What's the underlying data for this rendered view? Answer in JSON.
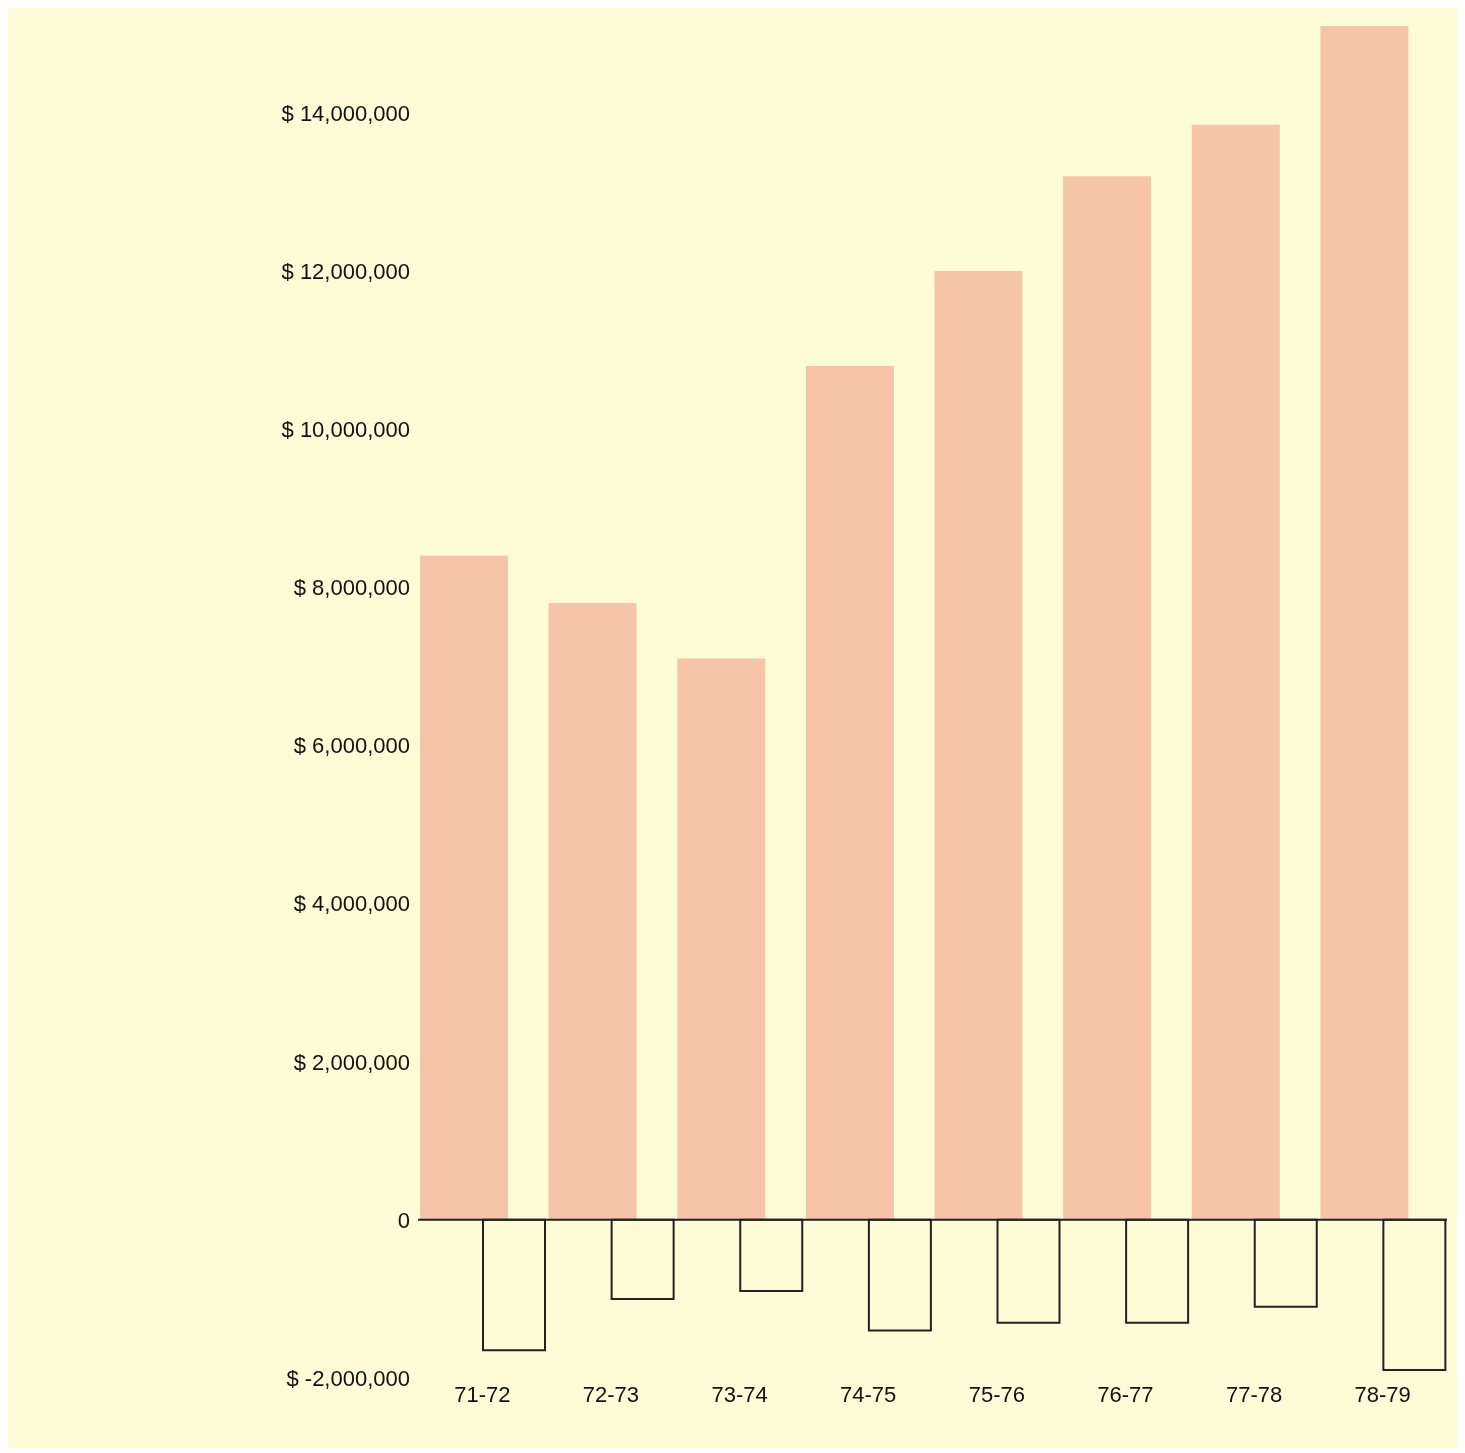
{
  "chart_data": {
    "type": "bar",
    "categories": [
      "71-72",
      "72-73",
      "73-74",
      "74-75",
      "75-76",
      "76-77",
      "77-78",
      "78-79"
    ],
    "series": [
      {
        "color": "#f6c4a8",
        "values": [
          8400000,
          7800000,
          7100000,
          10800000,
          12000000,
          13200000,
          13850000,
          15100000
        ]
      },
      {
        "color": "#222222",
        "values": [
          -1650000,
          -1000000,
          -900000,
          -1400000,
          -1300000,
          -1300000,
          -1100000,
          -1900000
        ]
      }
    ],
    "ylim": [
      -2000000,
      15200000
    ],
    "yticks": [
      {
        "value": -2000000,
        "label": "$ -2,000,000"
      },
      {
        "value": 0,
        "label": "0"
      },
      {
        "value": 2000000,
        "label": "$ 2,000,000"
      },
      {
        "value": 4000000,
        "label": "$ 4,000,000"
      },
      {
        "value": 6000000,
        "label": "$ 6,000,000"
      },
      {
        "value": 8000000,
        "label": "$ 8,000,000"
      },
      {
        "value": 10000000,
        "label": "$ 10,000,000"
      },
      {
        "value": 12000000,
        "label": "$ 12,000,000"
      },
      {
        "value": 14000000,
        "label": "$ 14,000,000"
      }
    ],
    "ref_lines": [
      {
        "axis": "y",
        "value": 0,
        "color": "#222222"
      }
    ],
    "grid": false,
    "legend": false
  }
}
